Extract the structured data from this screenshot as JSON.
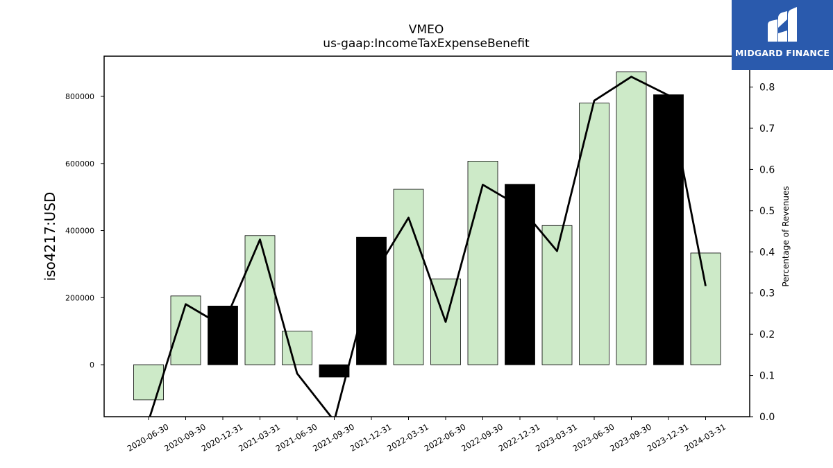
{
  "chart_data": {
    "type": "bar",
    "title": "VMEO",
    "subtitle": "us-gaap:IncomeTaxExpenseBenefit",
    "ylabel": "iso4217:USD",
    "ylabel_right": "Percentage of Revenues",
    "ylim": [
      -155000,
      920000
    ],
    "ylim_right": [
      0.0,
      0.875
    ],
    "yticks": [
      0,
      200000,
      400000,
      600000,
      800000
    ],
    "yticks_right": [
      0.0,
      0.1,
      0.2,
      0.3,
      0.4,
      0.5,
      0.6,
      0.7,
      0.8
    ],
    "categories": [
      "2020-06-30",
      "2020-09-30",
      "2020-12-31",
      "2021-03-31",
      "2021-06-30",
      "2021-09-30",
      "2021-12-31",
      "2022-03-31",
      "2022-06-30",
      "2022-09-30",
      "2022-12-31",
      "2023-03-31",
      "2023-06-30",
      "2023-09-30",
      "2023-12-31",
      "2024-03-31"
    ],
    "series": [
      {
        "kind": "bar",
        "values": [
          -105000,
          205000,
          175000,
          385000,
          100000,
          -37000,
          380000,
          523000,
          256000,
          607000,
          538000,
          415000,
          780000,
          873000,
          805000,
          333000
        ],
        "highlight": [
          false,
          false,
          true,
          false,
          false,
          true,
          true,
          false,
          false,
          false,
          true,
          false,
          false,
          false,
          true,
          false
        ],
        "color": "#cdeac8",
        "highlight_color": "#000000"
      },
      {
        "kind": "line",
        "axis": "right",
        "values": [
          -0.01,
          0.273,
          0.22,
          0.43,
          0.105,
          -0.01,
          0.335,
          0.483,
          0.23,
          0.563,
          0.51,
          0.402,
          0.767,
          0.825,
          0.78,
          0.317
        ],
        "color": "#000000"
      }
    ],
    "grid": false,
    "legend": "none"
  },
  "logo": {
    "text": "MIDGARD FINANCE",
    "icon": "midgard-finance-logo-icon",
    "color": "#2a5aad"
  }
}
